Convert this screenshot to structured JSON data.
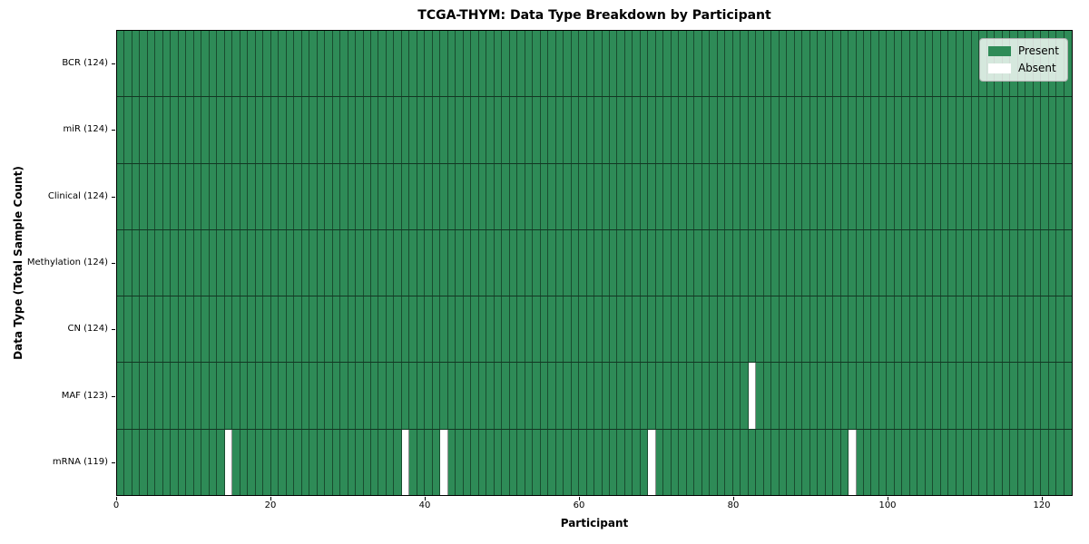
{
  "chart_data": {
    "type": "heatmap",
    "title": "TCGA-THYM: Data Type Breakdown by Participant",
    "xlabel": "Participant",
    "ylabel": "Data Type (Total Sample Count)",
    "x_range": [
      0,
      124
    ],
    "x_ticks": [
      0,
      20,
      40,
      60,
      80,
      100,
      120
    ],
    "n_participants": 124,
    "grid": "cell-borders",
    "rows": [
      {
        "label": "BCR (124)",
        "data_type": "BCR",
        "total_sample_count": 124,
        "absent_participants": []
      },
      {
        "label": "miR (124)",
        "data_type": "miR",
        "total_sample_count": 124,
        "absent_participants": []
      },
      {
        "label": "Clinical (124)",
        "data_type": "Clinical",
        "total_sample_count": 124,
        "absent_participants": []
      },
      {
        "label": "Methylation (124)",
        "data_type": "Methylation",
        "total_sample_count": 124,
        "absent_participants": []
      },
      {
        "label": "CN (124)",
        "data_type": "CN",
        "total_sample_count": 124,
        "absent_participants": []
      },
      {
        "label": "MAF (123)",
        "data_type": "MAF",
        "total_sample_count": 123,
        "absent_participants": [
          82
        ]
      },
      {
        "label": "mRNA (119)",
        "data_type": "mRNA",
        "total_sample_count": 119,
        "absent_participants": [
          14,
          37,
          42,
          69,
          95
        ]
      }
    ],
    "legend": {
      "position": "upper right",
      "entries": [
        {
          "label": "Present",
          "color": "#2e8b57"
        },
        {
          "label": "Absent",
          "color": "#ffffff"
        }
      ]
    },
    "colors": {
      "present": "#2e8b57",
      "absent": "#ffffff",
      "cell_border": "rgba(0,0,0,0.45)",
      "row_separator": "rgba(0,0,0,0.6)",
      "axes_frame": "#000000"
    }
  }
}
